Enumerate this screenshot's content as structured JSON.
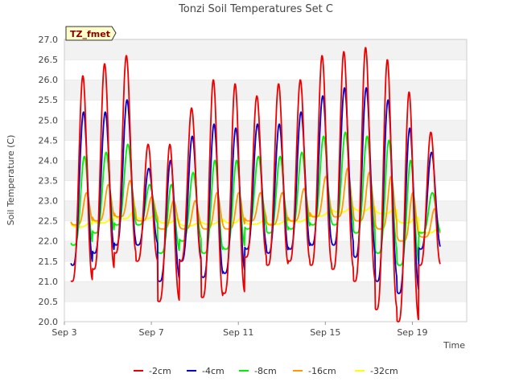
{
  "chart_data": {
    "type": "line",
    "title": "Tonzi Soil Temperatures Set C",
    "xlabel": "Time",
    "ylabel": "Soil Temperature (C)",
    "ylim": [
      20.0,
      27.0
    ],
    "xlim": [
      3.0,
      21.5
    ],
    "y_ticks": [
      "20.0",
      "20.5",
      "21.0",
      "21.5",
      "22.0",
      "22.5",
      "23.0",
      "23.5",
      "24.0",
      "24.5",
      "25.0",
      "25.5",
      "26.0",
      "26.5",
      "27.0"
    ],
    "x_ticks": [
      {
        "value": 3,
        "label": "Sep 3"
      },
      {
        "value": 7,
        "label": "Sep 7"
      },
      {
        "value": 11,
        "label": "Sep 11"
      },
      {
        "value": 15,
        "label": "Sep 15"
      },
      {
        "value": 19,
        "label": "Sep 19"
      }
    ],
    "grid": "horizontal bands",
    "legend_position": "bottom",
    "site_tag": "TZ_fmet",
    "x_start": 3.3,
    "x_end": 20.7,
    "series": [
      {
        "name": "-2cm",
        "color": "#ee0000",
        "daily_min": [
          21.0,
          21.3,
          21.7,
          21.5,
          20.5,
          21.5,
          20.6,
          20.7,
          21.6,
          21.4,
          21.5,
          21.4,
          21.3,
          21.0,
          20.3,
          20.0,
          21.4
        ],
        "daily_max": [
          26.1,
          26.4,
          26.6,
          24.4,
          24.4,
          25.3,
          26.0,
          25.9,
          25.6,
          25.9,
          26.0,
          26.6,
          26.7,
          26.8,
          26.5,
          25.7,
          24.7
        ]
      },
      {
        "name": "-4cm",
        "color": "#0000cc",
        "daily_min": [
          21.4,
          21.7,
          21.9,
          21.9,
          21.0,
          21.5,
          21.1,
          21.2,
          21.8,
          21.7,
          21.8,
          21.9,
          21.9,
          21.6,
          21.0,
          20.7,
          21.8
        ],
        "daily_max": [
          25.2,
          25.2,
          25.5,
          23.8,
          24.0,
          24.6,
          24.9,
          24.8,
          24.9,
          24.9,
          25.2,
          25.6,
          25.8,
          25.8,
          25.5,
          24.8,
          24.2
        ]
      },
      {
        "name": "-8cm",
        "color": "#00ee00",
        "daily_min": [
          21.9,
          22.2,
          22.4,
          22.4,
          21.7,
          22.0,
          21.7,
          21.8,
          22.3,
          22.2,
          22.3,
          22.4,
          22.4,
          22.2,
          21.7,
          21.4,
          22.2
        ],
        "daily_max": [
          24.1,
          24.2,
          24.4,
          23.4,
          23.4,
          23.7,
          24.0,
          24.0,
          24.1,
          24.1,
          24.2,
          24.6,
          24.7,
          24.6,
          24.5,
          24.0,
          23.2
        ]
      },
      {
        "name": "-16cm",
        "color": "#ff9900",
        "daily_min": [
          22.4,
          22.5,
          22.6,
          22.5,
          22.3,
          22.3,
          22.3,
          22.3,
          22.5,
          22.4,
          22.5,
          22.6,
          22.6,
          22.5,
          22.3,
          22.0,
          22.1
        ],
        "daily_max": [
          23.2,
          23.4,
          23.5,
          23.1,
          23.0,
          23.0,
          23.2,
          23.2,
          23.2,
          23.2,
          23.3,
          23.6,
          23.8,
          23.7,
          23.6,
          23.2,
          22.8
        ]
      },
      {
        "name": "-32cm",
        "color": "#ffff00",
        "daily_min": [
          22.35,
          22.45,
          22.55,
          22.55,
          22.45,
          22.38,
          22.42,
          22.45,
          22.42,
          22.42,
          22.48,
          22.62,
          22.72,
          22.75,
          22.68,
          22.45,
          22.2
        ],
        "daily_max": [
          22.45,
          22.55,
          22.72,
          22.65,
          22.55,
          22.45,
          22.5,
          22.6,
          22.5,
          22.5,
          22.55,
          22.72,
          22.82,
          22.88,
          22.8,
          22.6,
          22.3
        ]
      }
    ]
  }
}
